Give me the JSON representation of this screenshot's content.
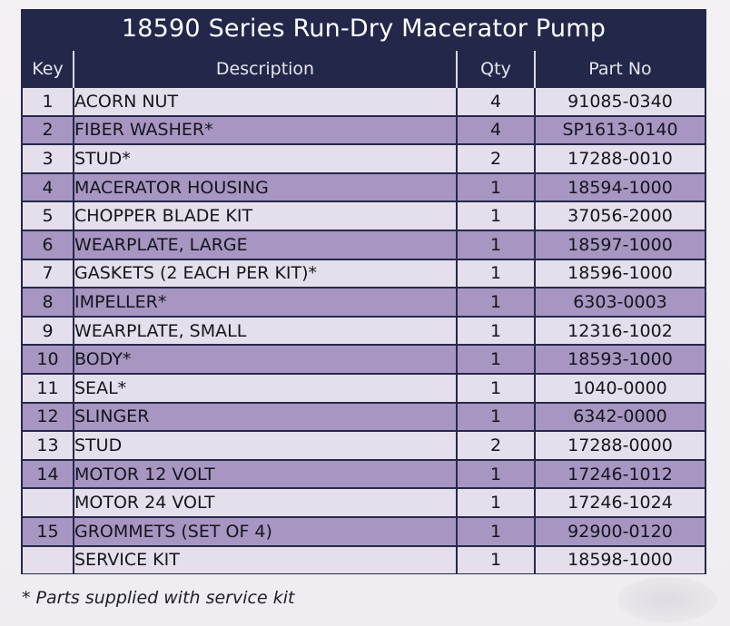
{
  "title": "18590 Series Run-Dry Macerator Pump",
  "columns": {
    "key": "Key",
    "description": "Description",
    "qty": "Qty",
    "part_no": "Part No"
  },
  "rows": [
    {
      "key": "1",
      "description": "ACORN NUT",
      "qty": "4",
      "part_no": "91085-0340"
    },
    {
      "key": "2",
      "description": "FIBER WASHER*",
      "qty": "4",
      "part_no": "SP1613-0140"
    },
    {
      "key": "3",
      "description": "STUD*",
      "qty": "2",
      "part_no": "17288-0010"
    },
    {
      "key": "4",
      "description": "MACERATOR HOUSING",
      "qty": "1",
      "part_no": "18594-1000"
    },
    {
      "key": "5",
      "description": "CHOPPER BLADE KIT",
      "qty": "1",
      "part_no": "37056-2000"
    },
    {
      "key": "6",
      "description": "WEARPLATE, LARGE",
      "qty": "1",
      "part_no": "18597-1000"
    },
    {
      "key": "7",
      "description": "GASKETS (2 EACH PER KIT)*",
      "qty": "1",
      "part_no": "18596-1000"
    },
    {
      "key": "8",
      "description": "IMPELLER*",
      "qty": "1",
      "part_no": "6303-0003"
    },
    {
      "key": "9",
      "description": "WEARPLATE, SMALL",
      "qty": "1",
      "part_no": "12316-1002"
    },
    {
      "key": "10",
      "description": "BODY*",
      "qty": "1",
      "part_no": "18593-1000"
    },
    {
      "key": "11",
      "description": "SEAL*",
      "qty": "1",
      "part_no": "1040-0000"
    },
    {
      "key": "12",
      "description": "SLINGER",
      "qty": "1",
      "part_no": "6342-0000"
    },
    {
      "key": "13",
      "description": "STUD",
      "qty": "2",
      "part_no": "17288-0000"
    },
    {
      "key": "14",
      "description": "MOTOR 12 VOLT",
      "qty": "1",
      "part_no": "17246-1012"
    },
    {
      "key": "",
      "description": "MOTOR 24 VOLT",
      "qty": "1",
      "part_no": "17246-1024"
    },
    {
      "key": "15",
      "description": "GROMMETS (SET OF 4)",
      "qty": "1",
      "part_no": "92900-0120"
    },
    {
      "key": "",
      "description": "SERVICE KIT",
      "qty": "1",
      "part_no": "18598-1000"
    }
  ],
  "footnote": "* Parts supplied with service kit",
  "colors": {
    "header": "#23284a",
    "row_light": "#e4dfea",
    "row_dark": "#a696c1"
  }
}
